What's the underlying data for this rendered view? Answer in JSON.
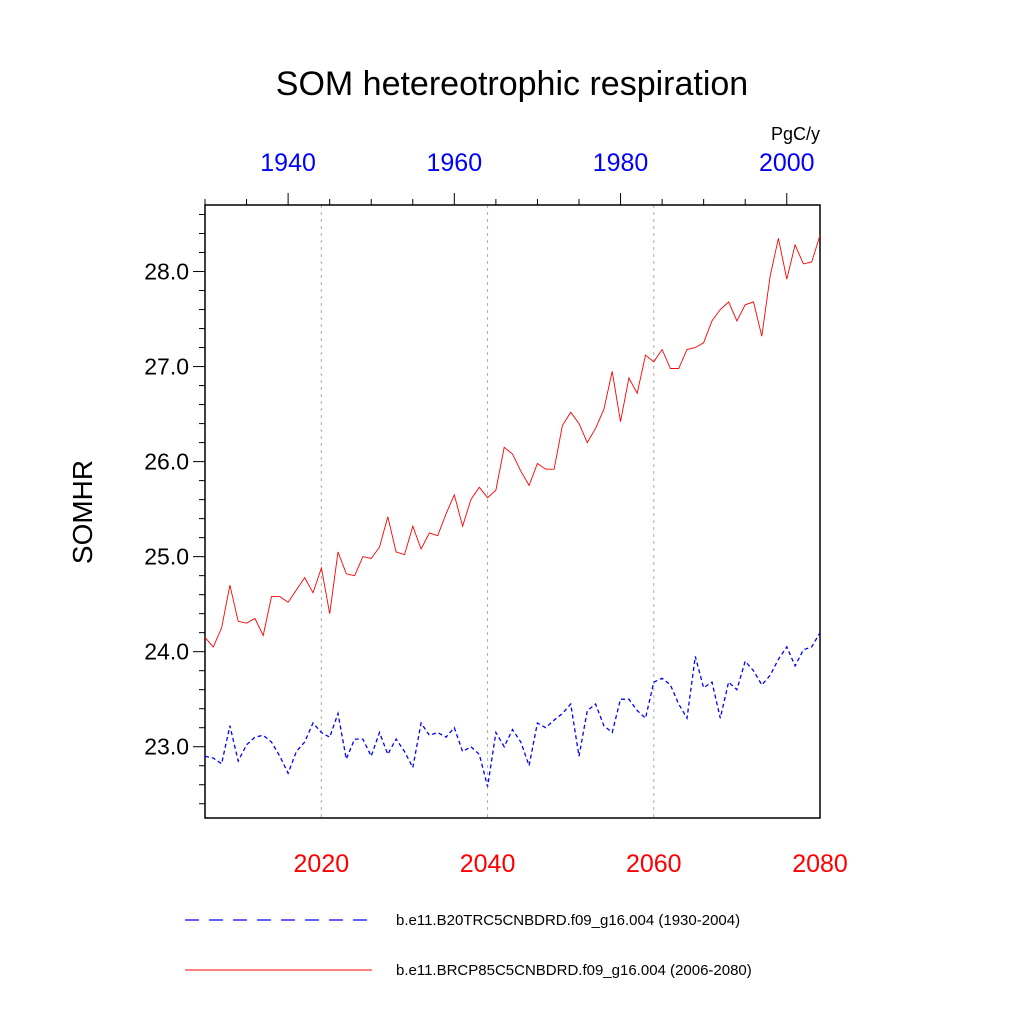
{
  "chart_data": {
    "type": "line",
    "title": "SOM hetereotrophic respiration",
    "ylabel": "SOMHR",
    "units": "PgC/y",
    "ylim": [
      22.25,
      28.7
    ],
    "yticks": [
      "23.0",
      "24.0",
      "25.0",
      "26.0",
      "27.0",
      "28.0"
    ],
    "ytick_values": [
      23.0,
      24.0,
      25.0,
      26.0,
      27.0,
      28.0
    ],
    "grid": "vertical dotted at bottom-axis major ticks",
    "bottom_axis": {
      "range": [
        2006,
        2080
      ],
      "ticks": [
        "2020",
        "2040",
        "2060",
        "2080"
      ],
      "tick_values": [
        2020,
        2040,
        2060,
        2080
      ],
      "color": "#ff0000"
    },
    "top_axis": {
      "range": [
        1930,
        2004
      ],
      "ticks": [
        "1940",
        "1960",
        "1980",
        "2000"
      ],
      "tick_values": [
        1940,
        1960,
        1980,
        2000
      ],
      "color": "#0000ff"
    },
    "legend_position": "bottom",
    "series": [
      {
        "name": "b.e11.B20TRC5CNBDRD.f09_g16.004 (1930-2004)",
        "color": "#0000ff",
        "style": "dashed",
        "axis": "top",
        "x": [
          1930,
          1931,
          1932,
          1933,
          1934,
          1935,
          1936,
          1937,
          1938,
          1939,
          1940,
          1941,
          1942,
          1943,
          1944,
          1945,
          1946,
          1947,
          1948,
          1949,
          1950,
          1951,
          1952,
          1953,
          1954,
          1955,
          1956,
          1957,
          1958,
          1959,
          1960,
          1961,
          1962,
          1963,
          1964,
          1965,
          1966,
          1967,
          1968,
          1969,
          1970,
          1971,
          1972,
          1973,
          1974,
          1975,
          1976,
          1977,
          1978,
          1979,
          1980,
          1981,
          1982,
          1983,
          1984,
          1985,
          1986,
          1987,
          1988,
          1989,
          1990,
          1991,
          1992,
          1993,
          1994,
          1995,
          1996,
          1997,
          1998,
          1999,
          2000,
          2001,
          2002,
          2003,
          2004
        ],
        "values": [
          22.9,
          22.88,
          22.82,
          23.22,
          22.85,
          23.02,
          23.1,
          23.12,
          23.05,
          22.9,
          22.72,
          22.95,
          23.05,
          23.25,
          23.15,
          23.1,
          23.35,
          22.87,
          23.08,
          23.08,
          22.9,
          23.15,
          22.92,
          23.08,
          22.95,
          22.78,
          23.25,
          23.12,
          23.15,
          23.1,
          23.2,
          22.95,
          23.0,
          22.92,
          22.58,
          23.15,
          23.0,
          23.18,
          23.05,
          22.8,
          23.25,
          23.2,
          23.28,
          23.35,
          23.45,
          22.9,
          23.38,
          23.45,
          23.22,
          23.15,
          23.5,
          23.5,
          23.38,
          23.3,
          23.68,
          23.72,
          23.65,
          23.45,
          23.3,
          23.95,
          23.62,
          23.68,
          23.3,
          23.68,
          23.6,
          23.9,
          23.8,
          23.65,
          23.75,
          23.92,
          24.05,
          23.85,
          24.02,
          24.05,
          24.2
        ]
      },
      {
        "name": "b.e11.BRCP85C5CNBDRD.f09_g16.004 (2006-2080)",
        "color": "#ff0000",
        "style": "solid",
        "axis": "bottom",
        "x": [
          2006,
          2007,
          2008,
          2009,
          2010,
          2011,
          2012,
          2013,
          2014,
          2015,
          2016,
          2017,
          2018,
          2019,
          2020,
          2021,
          2022,
          2023,
          2024,
          2025,
          2026,
          2027,
          2028,
          2029,
          2030,
          2031,
          2032,
          2033,
          2034,
          2035,
          2036,
          2037,
          2038,
          2039,
          2040,
          2041,
          2042,
          2043,
          2044,
          2045,
          2046,
          2047,
          2048,
          2049,
          2050,
          2051,
          2052,
          2053,
          2054,
          2055,
          2056,
          2057,
          2058,
          2059,
          2060,
          2061,
          2062,
          2063,
          2064,
          2065,
          2066,
          2067,
          2068,
          2069,
          2070,
          2071,
          2072,
          2073,
          2074,
          2075,
          2076,
          2077,
          2078,
          2079,
          2080
        ],
        "values": [
          24.15,
          24.05,
          24.25,
          24.7,
          24.32,
          24.3,
          24.35,
          24.17,
          24.58,
          24.58,
          24.52,
          24.65,
          24.78,
          24.62,
          24.88,
          24.4,
          25.05,
          24.82,
          24.8,
          25.0,
          24.98,
          25.1,
          25.42,
          25.05,
          25.02,
          25.32,
          25.08,
          25.25,
          25.22,
          25.45,
          25.65,
          25.32,
          25.6,
          25.73,
          25.62,
          25.7,
          26.15,
          26.08,
          25.9,
          25.75,
          25.98,
          25.92,
          25.92,
          26.38,
          26.52,
          26.4,
          26.2,
          26.35,
          26.55,
          26.95,
          26.42,
          26.88,
          26.72,
          27.12,
          27.05,
          27.18,
          26.98,
          26.98,
          27.18,
          27.2,
          27.25,
          27.48,
          27.6,
          27.68,
          27.48,
          27.65,
          27.68,
          27.32,
          27.95,
          28.35,
          27.92,
          28.28,
          28.08,
          28.1,
          28.38
        ]
      }
    ]
  }
}
